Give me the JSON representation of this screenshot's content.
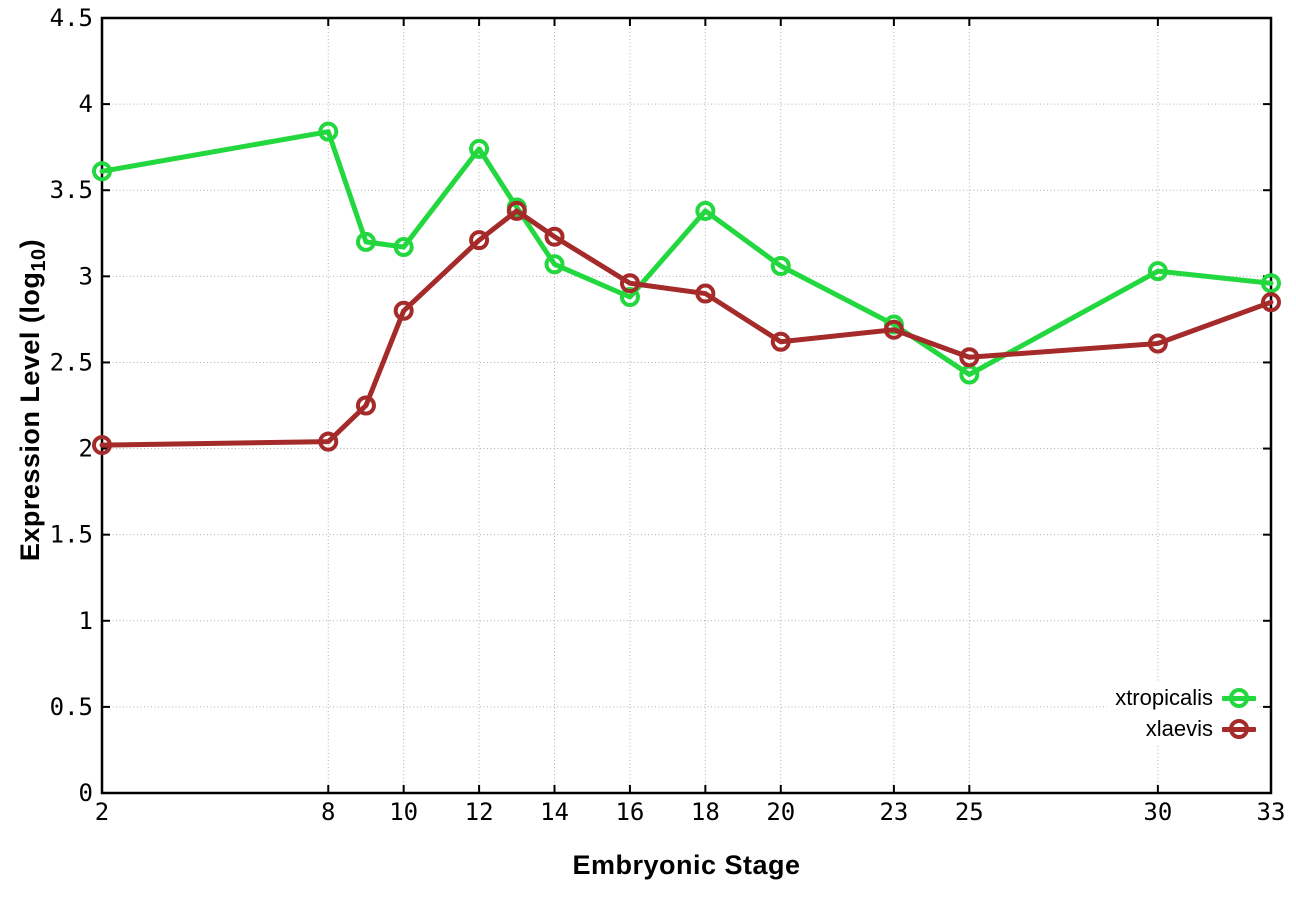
{
  "chart_data": {
    "type": "line",
    "title": "",
    "xlabel": "Embryonic Stage",
    "ylabel_prefix": "Expression Level (log",
    "ylabel_sub": "10",
    "ylabel_suffix": ")",
    "xlim": [
      2,
      33
    ],
    "ylim": [
      0,
      4.5
    ],
    "grid": true,
    "legend_position": "inside-bottom-right",
    "x": [
      2,
      8,
      9,
      10,
      12,
      13,
      14,
      16,
      18,
      20,
      23,
      25,
      30,
      33
    ],
    "xtick_values": [
      2,
      8,
      10,
      12,
      14,
      16,
      18,
      20,
      23,
      25,
      30,
      33
    ],
    "xtick_labels": [
      "2",
      "8",
      "10",
      "12",
      "14",
      "16",
      "18",
      "20",
      "23",
      "25",
      "30",
      "33"
    ],
    "ytick_values": [
      0,
      0.5,
      1,
      1.5,
      2,
      2.5,
      3,
      3.5,
      4,
      4.5
    ],
    "ytick_labels": [
      "0",
      "0.5",
      "1",
      "1.5",
      "2",
      "2.5",
      "3",
      "3.5",
      "4",
      "4.5"
    ],
    "series": [
      {
        "name": "xtropicalis",
        "color": "#22d83e",
        "marker": "open-circle",
        "values": [
          3.61,
          3.84,
          3.2,
          3.17,
          3.74,
          3.4,
          3.07,
          2.88,
          3.38,
          3.06,
          2.72,
          2.43,
          3.03,
          2.96
        ]
      },
      {
        "name": "xlaevis",
        "color": "#a52a2a",
        "marker": "open-circle",
        "values": [
          2.02,
          2.04,
          2.25,
          2.8,
          3.21,
          3.38,
          3.23,
          2.96,
          2.9,
          2.62,
          2.69,
          2.53,
          2.61,
          2.85
        ]
      }
    ],
    "colors": {
      "axis": "#000000",
      "grid": "#b0b0b0",
      "background": "#ffffff"
    }
  }
}
